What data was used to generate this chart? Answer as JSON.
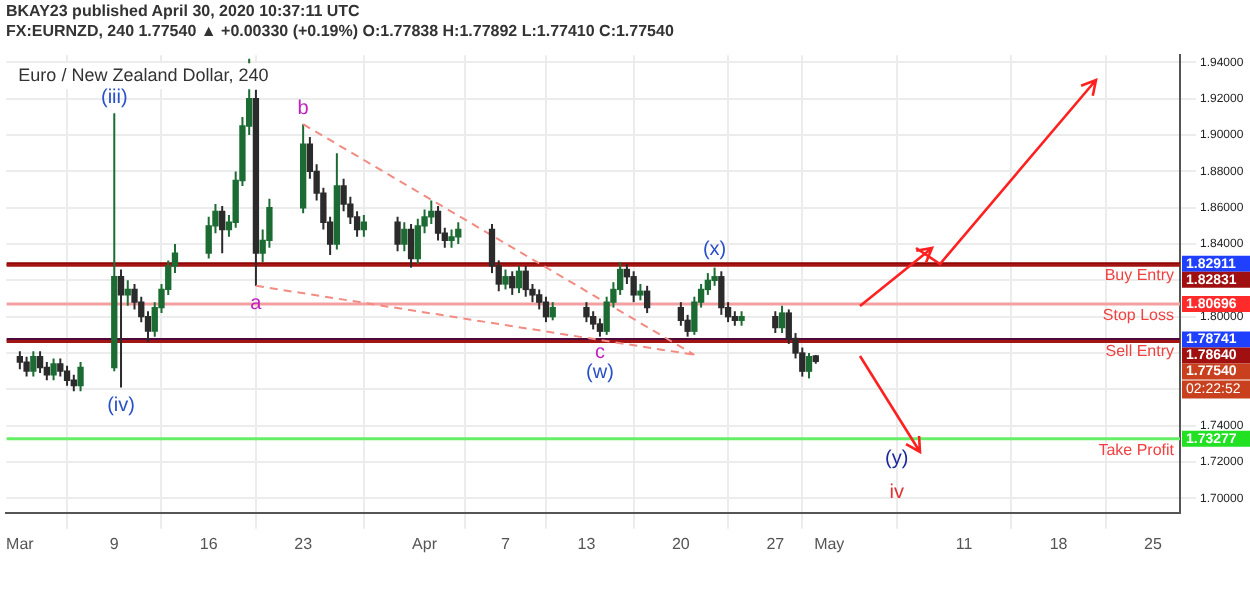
{
  "chart_data": {
    "type": "candlestick",
    "title": "Euro / New Zealand Dollar, 240",
    "subtitle": "FX:EURNZD, 240  1.77540 ▲ +0.00330 (+0.19%)  O:1.77838 H:1.77892 L:1.77410 C:1.77540",
    "annotations": [
      "BKAY23 published April 30, 2020 10:37:11 UTC",
      {
        "text": "(iii)",
        "x": "2020-03-09T00:00",
        "y": 1.912
      },
      {
        "text": "(iv)",
        "x": "2020-03-09T12:00",
        "y": 1.761
      },
      {
        "text": "a",
        "x": "2020-03-19T12:00",
        "y": 1.817
      },
      {
        "text": "b",
        "x": "2020-03-23T00:00",
        "y": 1.906
      },
      {
        "text": "c",
        "x": "2020-04-14T00:00",
        "y": 1.789
      },
      {
        "text": "(w)",
        "x": "2020-04-14T00:00",
        "y": 1.789
      },
      {
        "text": "(x)",
        "x": "2020-04-22T12:00",
        "y": 1.827
      },
      {
        "text": "(y)",
        "x": "2020-05-06T00:00",
        "y": 1.73277
      },
      {
        "text": "iv",
        "x": "2020-05-06T00:00",
        "y": 1.73277
      },
      "1.82911",
      "1.82831",
      "1.80696",
      "1.78741",
      "1.78640",
      "1.77540",
      "1.73277",
      "02:22:52"
    ],
    "series": [
      {
        "x": [
          "2020-03-02T00:00",
          "2020-03-02T12:00",
          "2020-03-03T00:00",
          "2020-03-03T12:00",
          "2020-03-04T00:00",
          "2020-03-04T12:00",
          "2020-03-05T00:00",
          "2020-03-05T12:00",
          "2020-03-06T00:00",
          "2020-03-06T12:00",
          "2020-03-09T00:00",
          "2020-03-09T12:00",
          "2020-03-10T00:00",
          "2020-03-10T12:00",
          "2020-03-11T00:00",
          "2020-03-11T12:00",
          "2020-03-12T00:00",
          "2020-03-12T12:00",
          "2020-03-13T00:00",
          "2020-03-13T12:00",
          "2020-03-16T00:00",
          "2020-03-16T12:00",
          "2020-03-17T00:00",
          "2020-03-17T12:00",
          "2020-03-18T00:00",
          "2020-03-18T12:00",
          "2020-03-19T00:00",
          "2020-03-19T12:00",
          "2020-03-20T00:00",
          "2020-03-20T12:00",
          "2020-03-23T00:00",
          "2020-03-23T12:00",
          "2020-03-24T00:00",
          "2020-03-24T12:00",
          "2020-03-25T00:00",
          "2020-03-25T12:00",
          "2020-03-26T00:00",
          "2020-03-26T12:00",
          "2020-03-27T00:00",
          "2020-03-27T12:00",
          "2020-03-30T00:00",
          "2020-03-30T12:00",
          "2020-03-31T00:00",
          "2020-03-31T12:00",
          "2020-04-01T00:00",
          "2020-04-01T12:00",
          "2020-04-02T00:00",
          "2020-04-02T12:00",
          "2020-04-03T00:00",
          "2020-04-03T12:00",
          "2020-04-06T00:00",
          "2020-04-06T12:00",
          "2020-04-07T00:00",
          "2020-04-07T12:00",
          "2020-04-08T00:00",
          "2020-04-08T12:00",
          "2020-04-09T00:00",
          "2020-04-09T12:00",
          "2020-04-10T00:00",
          "2020-04-10T12:00",
          "2020-04-13T00:00",
          "2020-04-13T12:00",
          "2020-04-14T00:00",
          "2020-04-14T12:00",
          "2020-04-15T00:00",
          "2020-04-15T12:00",
          "2020-04-16T00:00",
          "2020-04-16T12:00",
          "2020-04-17T00:00",
          "2020-04-17T12:00",
          "2020-04-20T00:00",
          "2020-04-20T12:00",
          "2020-04-21T00:00",
          "2020-04-21T12:00",
          "2020-04-22T00:00",
          "2020-04-22T12:00",
          "2020-04-23T00:00",
          "2020-04-23T12:00",
          "2020-04-24T00:00",
          "2020-04-24T12:00",
          "2020-04-27T00:00",
          "2020-04-27T12:00",
          "2020-04-28T00:00",
          "2020-04-28T12:00",
          "2020-04-29T00:00",
          "2020-04-29T12:00",
          "2020-04-30T00:00"
        ],
        "ohlc": [
          [
            1.778,
            1.781,
            1.771,
            1.775
          ],
          [
            1.775,
            1.778,
            1.767,
            1.77
          ],
          [
            1.77,
            1.781,
            1.767,
            1.778
          ],
          [
            1.778,
            1.781,
            1.769,
            1.772
          ],
          [
            1.772,
            1.775,
            1.765,
            1.768
          ],
          [
            1.768,
            1.777,
            1.765,
            1.774
          ],
          [
            1.774,
            1.777,
            1.767,
            1.77
          ],
          [
            1.77,
            1.773,
            1.762,
            1.765
          ],
          [
            1.765,
            1.768,
            1.759,
            1.762
          ],
          [
            1.762,
            1.775,
            1.759,
            1.772
          ],
          [
            1.772,
            1.912,
            1.77,
            1.822
          ],
          [
            1.822,
            1.826,
            1.761,
            1.812
          ],
          [
            1.812,
            1.82,
            1.806,
            1.815
          ],
          [
            1.815,
            1.818,
            1.804,
            1.808
          ],
          [
            1.808,
            1.811,
            1.797,
            1.8
          ],
          [
            1.8,
            1.803,
            1.786,
            1.792
          ],
          [
            1.792,
            1.808,
            1.789,
            1.805
          ],
          [
            1.805,
            1.818,
            1.802,
            1.815
          ],
          [
            1.815,
            1.831,
            1.812,
            1.828
          ],
          [
            1.828,
            1.84,
            1.824,
            1.835
          ],
          [
            1.835,
            1.855,
            1.832,
            1.85
          ],
          [
            1.85,
            1.862,
            1.846,
            1.858
          ],
          [
            1.858,
            1.861,
            1.835,
            1.848
          ],
          [
            1.848,
            1.856,
            1.844,
            1.852
          ],
          [
            1.852,
            1.88,
            1.849,
            1.875
          ],
          [
            1.875,
            1.91,
            1.872,
            1.905
          ],
          [
            1.905,
            1.942,
            1.9,
            1.92
          ],
          [
            1.92,
            1.925,
            1.817,
            1.835
          ],
          [
            1.835,
            1.848,
            1.83,
            1.842
          ],
          [
            1.842,
            1.865,
            1.838,
            1.86
          ],
          [
            1.86,
            1.906,
            1.857,
            1.895
          ],
          [
            1.895,
            1.899,
            1.876,
            1.88
          ],
          [
            1.88,
            1.884,
            1.864,
            1.868
          ],
          [
            1.868,
            1.871,
            1.848,
            1.852
          ],
          [
            1.852,
            1.855,
            1.834,
            1.84
          ],
          [
            1.84,
            1.89,
            1.837,
            1.872
          ],
          [
            1.872,
            1.876,
            1.858,
            1.862
          ],
          [
            1.862,
            1.866,
            1.851,
            1.855
          ],
          [
            1.855,
            1.858,
            1.844,
            1.848
          ],
          [
            1.848,
            1.856,
            1.844,
            1.852
          ],
          [
            1.852,
            1.855,
            1.836,
            1.84
          ],
          [
            1.84,
            1.852,
            1.836,
            1.848
          ],
          [
            1.848,
            1.851,
            1.827,
            1.832
          ],
          [
            1.832,
            1.854,
            1.829,
            1.85
          ],
          [
            1.85,
            1.859,
            1.846,
            1.855
          ],
          [
            1.855,
            1.864,
            1.851,
            1.858
          ],
          [
            1.858,
            1.861,
            1.842,
            1.846
          ],
          [
            1.846,
            1.849,
            1.838,
            1.842
          ],
          [
            1.842,
            1.848,
            1.838,
            1.844
          ],
          [
            1.844,
            1.852,
            1.84,
            1.848
          ],
          [
            1.848,
            1.851,
            1.824,
            1.828
          ],
          [
            1.828,
            1.831,
            1.814,
            1.818
          ],
          [
            1.818,
            1.826,
            1.815,
            1.822
          ],
          [
            1.822,
            1.825,
            1.812,
            1.816
          ],
          [
            1.816,
            1.828,
            1.813,
            1.825
          ],
          [
            1.825,
            1.828,
            1.811,
            1.815
          ],
          [
            1.815,
            1.818,
            1.808,
            1.812
          ],
          [
            1.812,
            1.815,
            1.804,
            1.808
          ],
          [
            1.808,
            1.811,
            1.797,
            1.8
          ],
          [
            1.8,
            1.808,
            1.798,
            1.805
          ],
          [
            1.805,
            1.808,
            1.797,
            1.8
          ],
          [
            1.8,
            1.803,
            1.793,
            1.796
          ],
          [
            1.796,
            1.799,
            1.789,
            1.792
          ],
          [
            1.792,
            1.811,
            1.79,
            1.808
          ],
          [
            1.808,
            1.819,
            1.805,
            1.815
          ],
          [
            1.815,
            1.83,
            1.812,
            1.826
          ],
          [
            1.826,
            1.829,
            1.818,
            1.822
          ],
          [
            1.822,
            1.825,
            1.808,
            1.812
          ],
          [
            1.812,
            1.818,
            1.809,
            1.814
          ],
          [
            1.814,
            1.817,
            1.802,
            1.805
          ],
          [
            1.805,
            1.808,
            1.795,
            1.798
          ],
          [
            1.798,
            1.801,
            1.789,
            1.792
          ],
          [
            1.792,
            1.811,
            1.79,
            1.808
          ],
          [
            1.808,
            1.818,
            1.805,
            1.815
          ],
          [
            1.815,
            1.824,
            1.812,
            1.82
          ],
          [
            1.82,
            1.827,
            1.817,
            1.822
          ],
          [
            1.822,
            1.825,
            1.801,
            1.805
          ],
          [
            1.805,
            1.808,
            1.797,
            1.8
          ],
          [
            1.8,
            1.803,
            1.795,
            1.798
          ],
          [
            1.798,
            1.803,
            1.795,
            1.8
          ],
          [
            1.8,
            1.803,
            1.791,
            1.794
          ],
          [
            1.794,
            1.806,
            1.791,
            1.802
          ],
          [
            1.802,
            1.804,
            1.785,
            1.788
          ],
          [
            1.788,
            1.791,
            1.777,
            1.78
          ],
          [
            1.78,
            1.783,
            1.767,
            1.77
          ],
          [
            1.77,
            1.78,
            1.766,
            1.778
          ],
          [
            1.77838,
            1.77892,
            1.7741,
            1.7754
          ]
        ],
        "colors": [
          "#2b2b2b",
          "#2b2b2b",
          "#1b6b32",
          "#2b2b2b",
          "#2b2b2b",
          "#1b6b32",
          "#2b2b2b",
          "#2b2b2b",
          "#2b2b2b",
          "#1b6b32",
          "#1b6b32",
          "#2b2b2b",
          "#1b6b32",
          "#2b2b2b",
          "#2b2b2b",
          "#2b2b2b",
          "#1b6b32",
          "#1b6b32",
          "#1b6b32",
          "#1b6b32",
          "#1b6b32",
          "#1b6b32",
          "#2b2b2b",
          "#1b6b32",
          "#1b6b32",
          "#1b6b32",
          "#1b6b32",
          "#2b2b2b",
          "#1b6b32",
          "#1b6b32",
          "#1b6b32",
          "#2b2b2b",
          "#2b2b2b",
          "#2b2b2b",
          "#2b2b2b",
          "#1b6b32",
          "#2b2b2b",
          "#2b2b2b",
          "#2b2b2b",
          "#1b6b32",
          "#2b2b2b",
          "#1b6b32",
          "#2b2b2b",
          "#1b6b32",
          "#1b6b32",
          "#1b6b32",
          "#2b2b2b",
          "#2b2b2b",
          "#1b6b32",
          "#1b6b32",
          "#2b2b2b",
          "#2b2b2b",
          "#1b6b32",
          "#2b2b2b",
          "#1b6b32",
          "#2b2b2b",
          "#2b2b2b",
          "#2b2b2b",
          "#2b2b2b",
          "#1b6b32",
          "#2b2b2b",
          "#2b2b2b",
          "#2b2b2b",
          "#1b6b32",
          "#1b6b32",
          "#1b6b32",
          "#2b2b2b",
          "#2b2b2b",
          "#1b6b32",
          "#2b2b2b",
          "#2b2b2b",
          "#2b2b2b",
          "#1b6b32",
          "#1b6b32",
          "#1b6b32",
          "#1b6b32",
          "#2b2b2b",
          "#2b2b2b",
          "#2b2b2b",
          "#1b6b32",
          "#2b2b2b",
          "#1b6b32",
          "#2b2b2b",
          "#2b2b2b",
          "#2b2b2b",
          "#1b6b32",
          "#2b2b2b"
        ]
      },
      {
        "type": "line",
        "x": [
          "2020-03-23T00:00",
          "2020-04-21T00:00"
        ],
        "values": [
          1.906,
          1.779
        ],
        "color": "#f28b82",
        "line_style": "dashed"
      },
      {
        "type": "line",
        "x": [
          "2020-03-19T12:00",
          "2020-04-21T00:00"
        ],
        "values": [
          1.817,
          1.779
        ],
        "color": "#f28b82",
        "line_style": "dashed"
      }
    ],
    "ref_lines": [
      {
        "axis": "y",
        "value": 1.82911,
        "label": "Buy Entry",
        "color": "#8b0000"
      },
      {
        "axis": "y",
        "value": 1.82831,
        "color": "#a31515"
      },
      {
        "axis": "y",
        "value": 1.80696,
        "label": "Stop Loss",
        "color": "#f4a0a0"
      },
      {
        "axis": "y",
        "value": 1.78741,
        "label": "Sell Entry",
        "color": "#4b0a3a"
      },
      {
        "axis": "y",
        "value": 1.7864,
        "color": "#a31515"
      },
      {
        "axis": "y",
        "value": 1.73277,
        "label": "Take Profit",
        "color": "#66ee66"
      }
    ],
    "xlim": [
      "2020-03-01T00:00",
      "2020-05-27T00:00"
    ],
    "xticks": [
      {
        "value": "2020-03-02",
        "label": "Mar"
      },
      {
        "value": "2020-03-09",
        "label": "9"
      },
      {
        "value": "2020-03-16",
        "label": "16"
      },
      {
        "value": "2020-03-23",
        "label": "23"
      },
      {
        "value": "2020-04-01",
        "label": "Apr"
      },
      {
        "value": "2020-04-07",
        "label": "7"
      },
      {
        "value": "2020-04-13",
        "label": "13"
      },
      {
        "value": "2020-04-20",
        "label": "20"
      },
      {
        "value": "2020-04-27",
        "label": "27"
      },
      {
        "value": "2020-05-01",
        "label": "May"
      },
      {
        "value": "2020-05-11",
        "label": "11"
      },
      {
        "value": "2020-05-18",
        "label": "18"
      },
      {
        "value": "2020-05-25",
        "label": "25"
      }
    ],
    "ylim": [
      1.692,
      1.944
    ],
    "yticks": [
      {
        "value": 1.7,
        "label": "1.70000"
      },
      {
        "value": 1.72,
        "label": "1.72000"
      },
      {
        "value": 1.74,
        "label": "1.74000"
      },
      {
        "value": 1.76,
        "label": null
      },
      {
        "value": 1.78,
        "label": null
      },
      {
        "value": 1.8,
        "label": "1.80000"
      },
      {
        "value": 1.82,
        "label": null
      },
      {
        "value": 1.84,
        "label": "1.84000"
      },
      {
        "value": 1.86,
        "label": "1.86000"
      },
      {
        "value": 1.88,
        "label": "1.88000"
      },
      {
        "value": 1.9,
        "label": "1.90000"
      },
      {
        "value": 1.92,
        "label": "1.92000"
      },
      {
        "value": 1.94,
        "label": "1.94000"
      }
    ],
    "grid": true,
    "legend": false
  }
}
